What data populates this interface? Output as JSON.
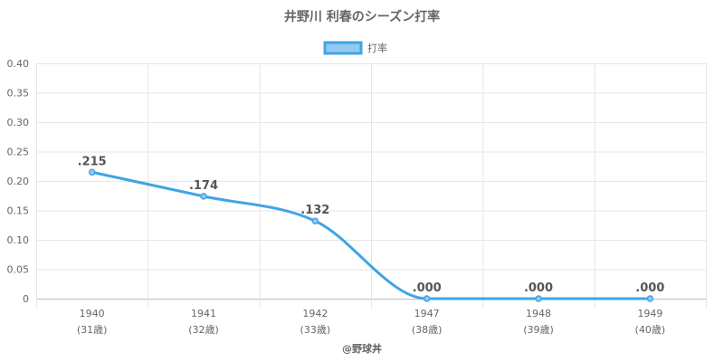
{
  "chart_data": {
    "type": "line",
    "title": "井野川 利春のシーズン打率",
    "legend": {
      "position": "top",
      "entries": [
        "打率"
      ]
    },
    "x": [
      "1940",
      "1941",
      "1942",
      "1947",
      "1948",
      "1949"
    ],
    "x_sublabels": [
      "(31歳)",
      "(32歳)",
      "(33歳)",
      "(38歳)",
      "(39歳)",
      "(40歳)"
    ],
    "series": [
      {
        "name": "打率",
        "values": [
          0.215,
          0.174,
          0.132,
          0.0,
          0.0,
          0.0
        ],
        "labels": [
          ".215",
          ".174",
          ".132",
          ".000",
          ".000",
          ".000"
        ]
      }
    ],
    "ylim": [
      0,
      0.4
    ],
    "y_ticks": [
      "0",
      "0.05",
      "0.10",
      "0.15",
      "0.20",
      "0.25",
      "0.30",
      "0.35",
      "0.40"
    ],
    "y_tick_values": [
      0,
      0.05,
      0.1,
      0.15,
      0.2,
      0.25,
      0.3,
      0.35,
      0.4
    ],
    "grid": true,
    "colors": {
      "line": "#3fa4e6",
      "fill": "#94c9f0",
      "grid": "#e6e6e6",
      "text": "#666666"
    }
  },
  "credit": "@野球丼"
}
